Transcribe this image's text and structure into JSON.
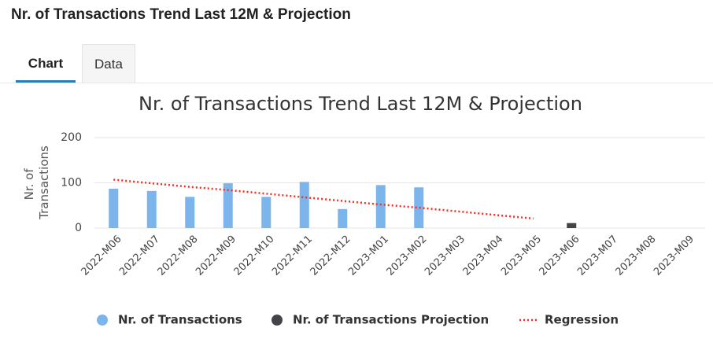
{
  "page_title": "Nr. of Transactions Trend Last 12M & Projection",
  "tabs": [
    "Chart",
    "Data"
  ],
  "chart_data": {
    "type": "bar",
    "title": "Nr. of Transactions Trend Last 12M & Projection",
    "y_label_lines": [
      "Nr. of",
      "Transactions"
    ],
    "categories": [
      "2022-M06",
      "2022-M07",
      "2022-M08",
      "2022-M09",
      "2022-M10",
      "2022-M11",
      "2022-M12",
      "2023-M01",
      "2023-M02",
      "2023-M03",
      "2023-M04",
      "2023-M05",
      "2023-M06",
      "2023-M07",
      "2023-M08",
      "2023-M09"
    ],
    "series": [
      {
        "name": "Nr. of Transactions",
        "type": "bar",
        "color": "#7cb5ec",
        "values": [
          87,
          82,
          69,
          99,
          69,
          102,
          42,
          95,
          90,
          null,
          null,
          null,
          null,
          null,
          null,
          null
        ]
      },
      {
        "name": "Nr. of Transactions Projection",
        "type": "bar",
        "color": "#434348",
        "values": [
          null,
          null,
          null,
          null,
          null,
          null,
          null,
          null,
          null,
          null,
          null,
          null,
          11,
          null,
          null,
          null
        ]
      },
      {
        "name": "Regression",
        "type": "line",
        "dashed": true,
        "color": "#ff2a1a",
        "values": [
          107,
          99,
          91,
          84,
          76,
          68,
          60,
          52,
          45,
          37,
          29,
          21,
          null,
          null,
          null,
          null
        ]
      }
    ],
    "ylim": [
      0,
      200
    ],
    "yticks": [
      0,
      100,
      200
    ],
    "grid": true
  }
}
